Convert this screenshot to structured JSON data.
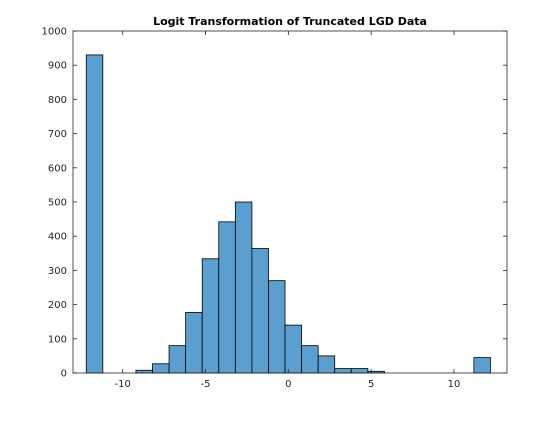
{
  "chart_data": {
    "type": "bar",
    "title": "Logit Transformation of Truncated LGD Data",
    "xlabel": "",
    "ylabel": "",
    "xlim": [
      -13,
      13.2
    ],
    "ylim": [
      0,
      1000
    ],
    "bin_width": 1.0,
    "bins": [
      {
        "start": -12.2,
        "value": 930
      },
      {
        "start": -9.2,
        "value": 8
      },
      {
        "start": -8.2,
        "value": 27
      },
      {
        "start": -7.2,
        "value": 80
      },
      {
        "start": -6.2,
        "value": 177
      },
      {
        "start": -5.2,
        "value": 334
      },
      {
        "start": -4.2,
        "value": 442
      },
      {
        "start": -3.2,
        "value": 500
      },
      {
        "start": -2.2,
        "value": 364
      },
      {
        "start": -1.2,
        "value": 270
      },
      {
        "start": -0.2,
        "value": 140
      },
      {
        "start": 0.8,
        "value": 80
      },
      {
        "start": 1.8,
        "value": 50
      },
      {
        "start": 2.8,
        "value": 13
      },
      {
        "start": 3.8,
        "value": 13
      },
      {
        "start": 4.8,
        "value": 5
      },
      {
        "start": 11.2,
        "value": 45
      }
    ],
    "x_ticks": [
      -10,
      -5,
      0,
      5,
      10
    ],
    "y_ticks": [
      0,
      100,
      200,
      300,
      400,
      500,
      600,
      700,
      800,
      900,
      1000
    ],
    "grid": false,
    "legend": "none",
    "colors": {
      "bar_fill": "#5b9fd1",
      "bar_edge": "#000000",
      "axis": "#262626",
      "background": "#ffffff"
    }
  }
}
